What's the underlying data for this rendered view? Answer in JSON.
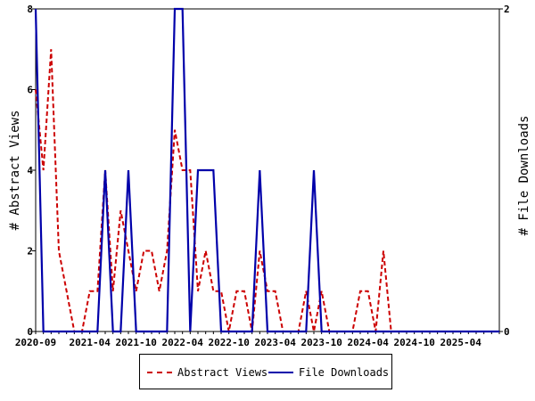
{
  "chart_data": {
    "type": "line",
    "x": [
      "2020-09",
      "2020-10",
      "2020-11",
      "2020-12",
      "2021-01",
      "2021-02",
      "2021-03",
      "2021-04",
      "2021-05",
      "2021-06",
      "2021-07",
      "2021-08",
      "2021-09",
      "2021-10",
      "2021-11",
      "2021-12",
      "2022-01",
      "2022-02",
      "2022-03",
      "2022-04",
      "2022-05",
      "2022-06",
      "2022-07",
      "2022-08",
      "2022-09",
      "2022-10",
      "2022-11",
      "2022-12",
      "2023-01",
      "2023-02",
      "2023-03",
      "2023-04",
      "2023-05",
      "2023-06",
      "2023-07",
      "2023-08",
      "2023-09",
      "2023-10",
      "2023-11",
      "2023-12",
      "2024-01",
      "2024-02",
      "2024-03",
      "2024-04",
      "2024-05",
      "2024-06",
      "2024-07",
      "2024-08",
      "2024-09",
      "2024-10",
      "2024-11",
      "2024-12",
      "2025-01",
      "2025-02",
      "2025-03",
      "2025-04",
      "2025-05",
      "2025-06",
      "2025-07",
      "2025-08",
      "2025-09"
    ],
    "x_tick_labels": [
      "2020-09",
      "2021-04",
      "2021-10",
      "2022-04",
      "2022-10",
      "2023-04",
      "2023-10",
      "2024-04",
      "2024-10",
      "2025-04"
    ],
    "series": [
      {
        "name": "Abstract Views",
        "axis": "left",
        "color": "#cc0000",
        "style": "dashed",
        "values": [
          6,
          4,
          7,
          2,
          1,
          0,
          0,
          1,
          1,
          4,
          1,
          3,
          2,
          1,
          2,
          2,
          1,
          2,
          5,
          4,
          4,
          1,
          2,
          1,
          1,
          0,
          1,
          1,
          0,
          2,
          1,
          1,
          0,
          0,
          0,
          1,
          0,
          1,
          0,
          0,
          0,
          0,
          1,
          1,
          0,
          2,
          0,
          0,
          0,
          0,
          0,
          0,
          0,
          0,
          0,
          0,
          0,
          0,
          0,
          0,
          0
        ]
      },
      {
        "name": "File Downloads",
        "axis": "right",
        "color": "#0000aa",
        "style": "solid",
        "values": [
          2,
          0,
          0,
          0,
          0,
          0,
          0,
          0,
          0,
          1,
          0,
          0,
          1,
          0,
          0,
          0,
          0,
          0,
          2,
          2,
          0,
          1,
          1,
          1,
          0,
          0,
          0,
          0,
          0,
          1,
          0,
          0,
          0,
          0,
          0,
          0,
          1,
          0,
          0,
          0,
          0,
          0,
          0,
          0,
          0,
          0,
          0,
          0,
          0,
          0,
          0,
          0,
          0,
          0,
          0,
          0,
          0,
          0,
          0,
          0,
          0
        ]
      }
    ],
    "ylabel": "# Abstract Views",
    "y2label": "# File Downloads",
    "ylim": [
      0,
      8
    ],
    "y_ticks": [
      "0",
      "2",
      "4",
      "6",
      "8"
    ],
    "y2lim": [
      0,
      2
    ],
    "y2_ticks": [
      "0",
      "2"
    ],
    "grid": false,
    "legend_position": "bottom"
  }
}
